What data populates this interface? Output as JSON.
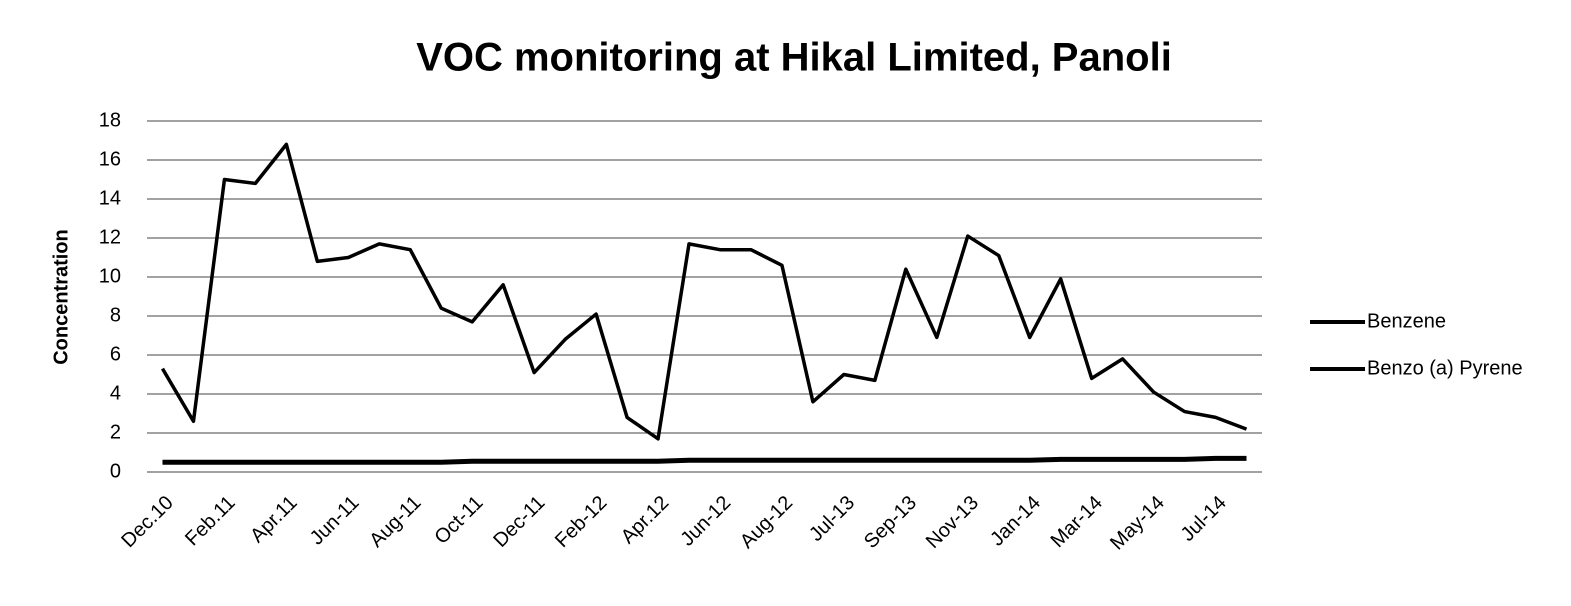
{
  "chart_data": {
    "type": "line",
    "title": "VOC monitoring at Hikal Limited, Panoli",
    "ylabel": "Concentration",
    "categories": [
      "Dec.10",
      null,
      "Feb.11",
      null,
      "Apr.11",
      null,
      "Jun-11",
      null,
      "Aug-11",
      null,
      "Oct-11",
      null,
      "Dec-11",
      null,
      "Feb-12",
      null,
      "Apr.12",
      null,
      "Jun-12",
      null,
      "Aug-12",
      null,
      "Jul-13",
      null,
      "Sep-13",
      null,
      "Nov-13",
      null,
      "Jan-14",
      null,
      "Mar-14",
      null,
      "May-14",
      null,
      "Jul-14",
      null
    ],
    "series": [
      {
        "name": "Benzene",
        "color": "#000000",
        "values": [
          5.3,
          2.6,
          15.0,
          14.8,
          16.8,
          10.8,
          11.0,
          11.7,
          11.4,
          8.4,
          7.7,
          9.6,
          5.1,
          6.8,
          8.1,
          2.8,
          1.7,
          11.7,
          11.4,
          11.4,
          10.6,
          3.6,
          5.0,
          4.7,
          10.4,
          6.9,
          12.1,
          11.1,
          6.9,
          9.9,
          4.8,
          5.8,
          4.1,
          3.1,
          2.8,
          2.2
        ]
      },
      {
        "name": "Benzo (a) Pyrene",
        "color": "#000000",
        "values": [
          0.5,
          0.5,
          0.5,
          0.5,
          0.5,
          0.5,
          0.5,
          0.5,
          0.5,
          0.5,
          0.55,
          0.55,
          0.55,
          0.55,
          0.55,
          0.55,
          0.55,
          0.6,
          0.6,
          0.6,
          0.6,
          0.6,
          0.6,
          0.6,
          0.6,
          0.6,
          0.6,
          0.6,
          0.6,
          0.65,
          0.65,
          0.65,
          0.65,
          0.65,
          0.7,
          0.7
        ]
      }
    ],
    "ylim": [
      0,
      18
    ],
    "yticks": [
      0,
      2,
      4,
      6,
      8,
      10,
      12,
      14,
      16,
      18
    ],
    "grid": true,
    "legend": "right"
  }
}
